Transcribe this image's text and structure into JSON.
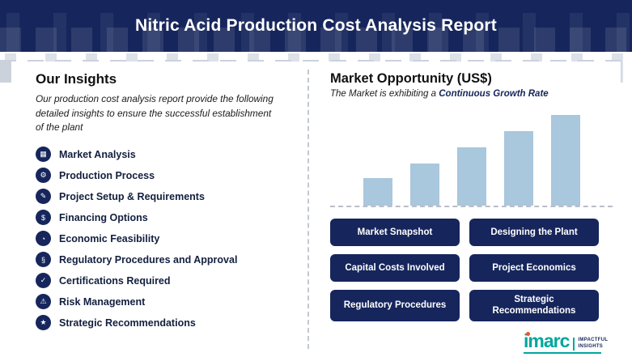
{
  "header": {
    "title": "Nitric Acid Production Cost Analysis Report"
  },
  "insights": {
    "heading": "Our Insights",
    "description": "Our production cost analysis report provide the following detailed insights to ensure the successful establishment of the plant",
    "items": [
      {
        "label": "Market Analysis",
        "icon": "market-analysis-icon",
        "glyph": "▦"
      },
      {
        "label": "Production Process",
        "icon": "production-process-icon",
        "glyph": "⚙"
      },
      {
        "label": "Project Setup & Requirements",
        "icon": "project-setup-icon",
        "glyph": "✎"
      },
      {
        "label": "Financing Options",
        "icon": "financing-options-icon",
        "glyph": "$"
      },
      {
        "label": "Economic Feasibility",
        "icon": "economic-feasibility-icon",
        "glyph": "◔"
      },
      {
        "label": "Regulatory Procedures and Approval",
        "icon": "regulatory-procedures-icon",
        "glyph": "§"
      },
      {
        "label": "Certifications Required",
        "icon": "certifications-icon",
        "glyph": "✓"
      },
      {
        "label": "Risk Management",
        "icon": "risk-management-icon",
        "glyph": "⚠"
      },
      {
        "label": "Strategic Recommendations",
        "icon": "strategic-recommendations-icon",
        "glyph": "★"
      }
    ]
  },
  "market": {
    "heading": "Market Opportunity (US$)",
    "subtitle_prefix": "The Market is exhibiting a ",
    "subtitle_highlight": "Continuous Growth Rate",
    "buttons": [
      "Market Snapshot",
      "Designing the Plant",
      "Capital Costs Involved",
      "Project Economics",
      "Regulatory Procedures",
      "Strategic Recommendations"
    ]
  },
  "chart_data": {
    "type": "bar",
    "title": "Market Opportunity (US$)",
    "categories": [
      "",
      "",
      "",
      "",
      ""
    ],
    "values": [
      30,
      46,
      64,
      82,
      100
    ],
    "xlabel": "",
    "ylabel": "",
    "ylim": [
      0,
      100
    ],
    "grid": false,
    "legend": false,
    "bar_color": "#a9c7dd",
    "baseline_style": "dashed"
  },
  "logo": {
    "brand": "imarc",
    "tagline": [
      "IMPACTFUL",
      "INSIGHTS"
    ]
  },
  "colors": {
    "navy": "#16265c",
    "bar_blue": "#a9c7dd",
    "teal": "#00a79d",
    "logo_dot": "#e8542f"
  }
}
